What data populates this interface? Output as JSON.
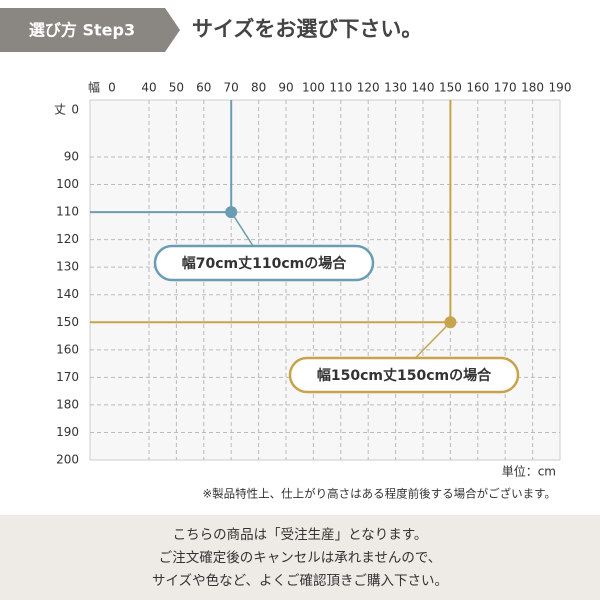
{
  "header": {
    "step_label": "選び方 Step3",
    "title": "サイズをお選び下さい。"
  },
  "chart_data": {
    "type": "scatter",
    "x_label": "幅",
    "y_label": "丈",
    "xlim": [
      0,
      190
    ],
    "xticks": [
      0,
      40,
      50,
      60,
      70,
      80,
      90,
      100,
      110,
      120,
      130,
      140,
      150,
      160,
      170,
      180,
      190
    ],
    "ylim": [
      0,
      200
    ],
    "yticks": [
      0,
      90,
      100,
      110,
      120,
      130,
      140,
      150,
      160,
      170,
      180,
      190,
      200
    ],
    "y_inverted": true,
    "grid": true,
    "points": [
      {
        "x": 70,
        "y": 110,
        "color": "#6b9db2",
        "label": "幅70cm丈110cmの場合"
      },
      {
        "x": 150,
        "y": 150,
        "color": "#c7a34b",
        "label": "幅150cm丈150cmの場合"
      }
    ],
    "unit": "単位：cm",
    "note": "※製品特性上、仕上がり高さはある程度前後する場合がございます。"
  },
  "notice": {
    "lines": [
      "こちらの商品は「受注生産」となります。",
      "ご注文確定後のキャンセルは承れませんので、",
      "サイズや色など、よくご確認頂きご購入下さい。"
    ]
  }
}
